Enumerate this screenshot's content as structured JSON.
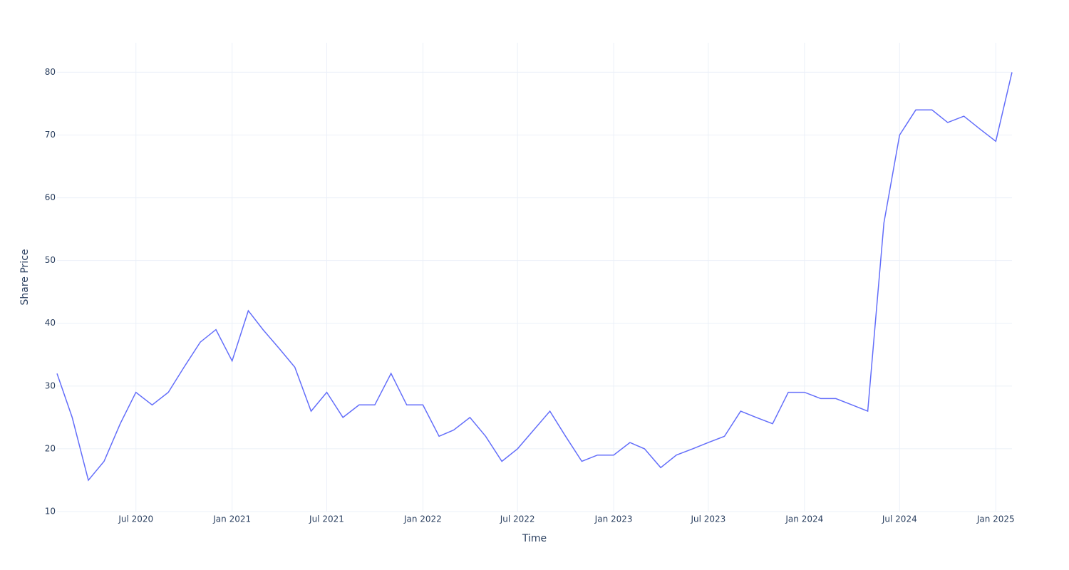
{
  "chart_data": {
    "type": "line",
    "x_label": "Time",
    "y_label": "Share Price",
    "x": [
      "2020-02",
      "2020-03",
      "2020-04",
      "2020-05",
      "2020-06",
      "2020-07",
      "2020-08",
      "2020-09",
      "2020-10",
      "2020-11",
      "2020-12",
      "2021-01",
      "2021-02",
      "2021-03",
      "2021-04",
      "2021-05",
      "2021-06",
      "2021-07",
      "2021-08",
      "2021-09",
      "2021-10",
      "2021-11",
      "2021-12",
      "2022-01",
      "2022-02",
      "2022-03",
      "2022-04",
      "2022-05",
      "2022-06",
      "2022-07",
      "2022-08",
      "2022-09",
      "2022-10",
      "2022-11",
      "2022-12",
      "2023-01",
      "2023-02",
      "2023-03",
      "2023-04",
      "2023-05",
      "2023-06",
      "2023-07",
      "2023-08",
      "2023-09",
      "2023-10",
      "2023-11",
      "2023-12",
      "2024-01",
      "2024-02",
      "2024-03",
      "2024-04",
      "2024-05",
      "2024-06",
      "2024-07",
      "2024-08",
      "2024-09",
      "2024-10",
      "2024-11",
      "2024-12",
      "2025-01",
      "2025-02"
    ],
    "series": [
      {
        "name": "Share Price",
        "color": "#636efa",
        "values": [
          32,
          25,
          15,
          18,
          24,
          29,
          27,
          29,
          33,
          37,
          39,
          34,
          42,
          39,
          36,
          33,
          26,
          29,
          25,
          27,
          27,
          32,
          27,
          27,
          22,
          23,
          25,
          22,
          18,
          20,
          23,
          26,
          22,
          18,
          19,
          19,
          21,
          20,
          17,
          19,
          20,
          21,
          22,
          26,
          25,
          24,
          29,
          29,
          28,
          28,
          27,
          26,
          56,
          70,
          74,
          74,
          72,
          73,
          71,
          69,
          80
        ]
      }
    ],
    "xlim": [
      "2020-02",
      "2025-02"
    ],
    "xticks": [
      {
        "value": "2020-07",
        "label": "Jul 2020"
      },
      {
        "value": "2021-01",
        "label": "Jan 2021"
      },
      {
        "value": "2021-07",
        "label": "Jul 2021"
      },
      {
        "value": "2022-01",
        "label": "Jan 2022"
      },
      {
        "value": "2022-07",
        "label": "Jul 2022"
      },
      {
        "value": "2023-01",
        "label": "Jan 2023"
      },
      {
        "value": "2023-07",
        "label": "Jul 2023"
      },
      {
        "value": "2024-01",
        "label": "Jan 2024"
      },
      {
        "value": "2024-07",
        "label": "Jul 2024"
      },
      {
        "value": "2025-01",
        "label": "Jan 2025"
      }
    ],
    "ylim": [
      10,
      84.7
    ],
    "yticks": [
      10,
      20,
      30,
      40,
      50,
      60,
      70,
      80
    ],
    "grid": true
  }
}
